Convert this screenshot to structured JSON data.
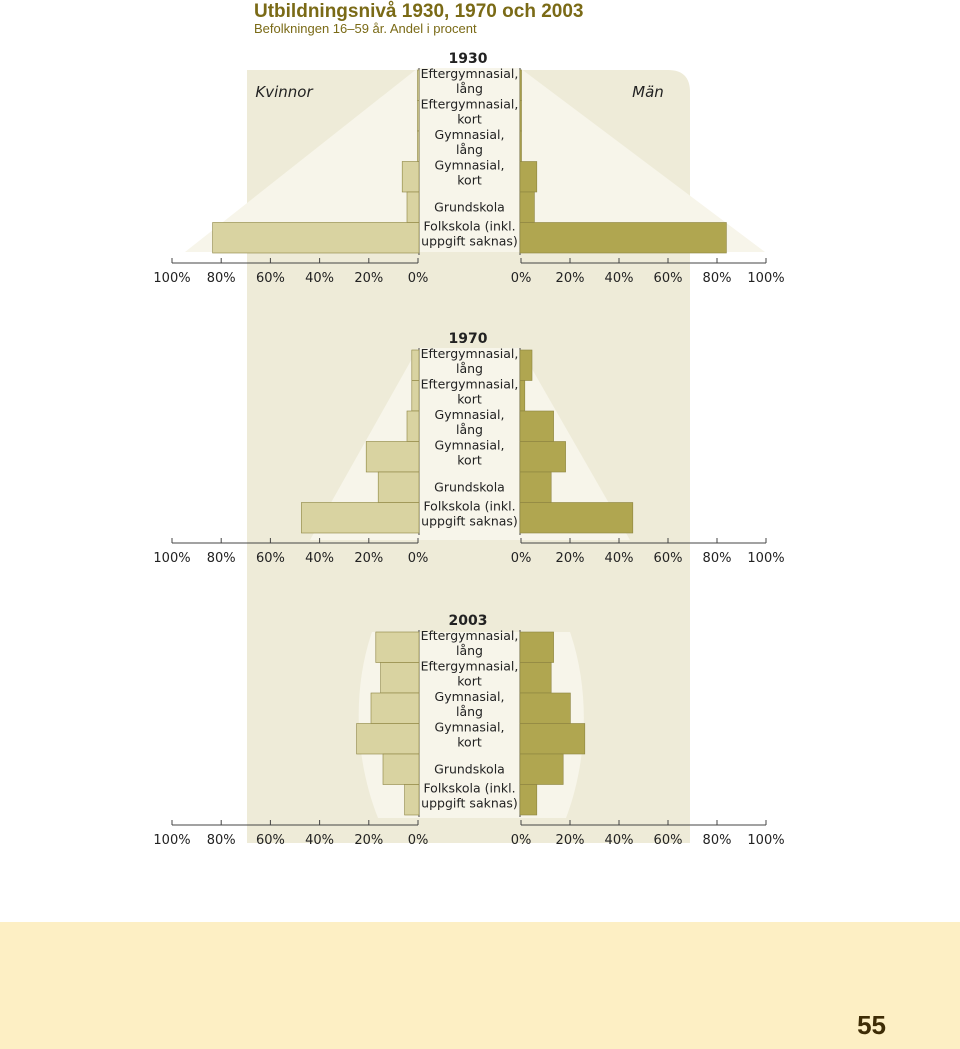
{
  "title": "Utbildningsnivå 1930, 1970 och 2003",
  "subtitle": "Befolkningen 16–59 år. Andel i procent",
  "labels": {
    "women": "Kvinnor",
    "men": "Män"
  },
  "categories": [
    "Eftergymnasial,\nlång",
    "Eftergymnasial,\nkort",
    "Gymnasial,\nlång",
    "Gymnasial,\nkort",
    "Grundskola",
    "Folkskola (inkl.\nuppgift saknas)"
  ],
  "colors": {
    "panel": "#eeebd8",
    "highlight": "#f7f5ea",
    "women_bar": "#d9d3a1",
    "men_bar": "#b0a650",
    "bar_stroke": "#8c8440",
    "axis": "#444444",
    "text": "#222222",
    "footer": "#fdefc4",
    "page_number": "#3e2c06"
  },
  "page_number": "55",
  "chart_data": [
    {
      "type": "bar",
      "year": "1930",
      "xlim": [
        0,
        100
      ],
      "xticks": [
        "100%",
        "80%",
        "60%",
        "40%",
        "20%",
        "0%"
      ],
      "series": [
        {
          "name": "Kvinnor",
          "values": [
            0.5,
            0.5,
            0.5,
            7,
            5,
            86
          ]
        },
        {
          "name": "Män",
          "values": [
            0.5,
            0.5,
            0.5,
            7,
            6,
            86
          ]
        }
      ]
    },
    {
      "type": "bar",
      "year": "1970",
      "xlim": [
        0,
        100
      ],
      "xticks": [
        "100%",
        "80%",
        "60%",
        "40%",
        "20%",
        "0%"
      ],
      "series": [
        {
          "name": "Kvinnor",
          "values": [
            3,
            3,
            5,
            22,
            17,
            49
          ]
        },
        {
          "name": "Män",
          "values": [
            5,
            2,
            14,
            19,
            13,
            47
          ]
        }
      ]
    },
    {
      "type": "bar",
      "year": "2003",
      "xlim": [
        0,
        100
      ],
      "xticks": [
        "100%",
        "80%",
        "60%",
        "40%",
        "20%",
        "0%"
      ],
      "series": [
        {
          "name": "Kvinnor",
          "values": [
            18,
            16,
            20,
            26,
            15,
            6
          ]
        },
        {
          "name": "Män",
          "values": [
            14,
            13,
            21,
            27,
            18,
            7
          ]
        }
      ]
    }
  ]
}
